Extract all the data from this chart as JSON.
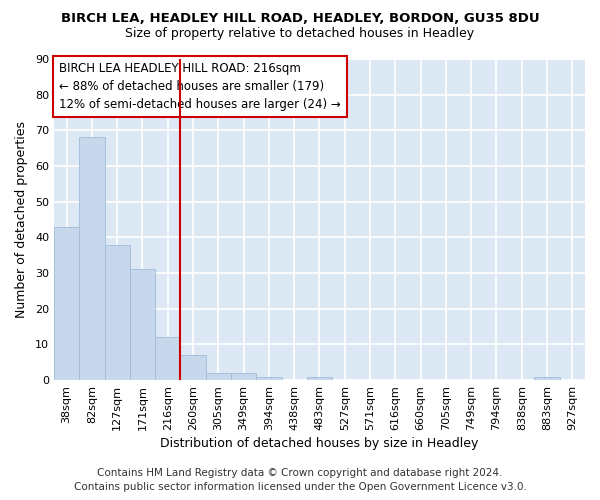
{
  "title_line1": "BIRCH LEA, HEADLEY HILL ROAD, HEADLEY, BORDON, GU35 8DU",
  "title_line2": "Size of property relative to detached houses in Headley",
  "xlabel": "Distribution of detached houses by size in Headley",
  "ylabel": "Number of detached properties",
  "categories": [
    "38sqm",
    "82sqm",
    "127sqm",
    "171sqm",
    "216sqm",
    "260sqm",
    "305sqm",
    "349sqm",
    "394sqm",
    "438sqm",
    "483sqm",
    "527sqm",
    "571sqm",
    "616sqm",
    "660sqm",
    "705sqm",
    "749sqm",
    "794sqm",
    "838sqm",
    "883sqm",
    "927sqm"
  ],
  "values": [
    43,
    68,
    38,
    31,
    12,
    7,
    2,
    2,
    1,
    0,
    1,
    0,
    0,
    0,
    0,
    0,
    0,
    0,
    0,
    1,
    0
  ],
  "bar_color": "#c8d8ec",
  "bar_edge_color": "#a0bcd8",
  "vline_index": 4,
  "vline_color": "#cc0000",
  "ylim": [
    0,
    90
  ],
  "yticks": [
    0,
    10,
    20,
    30,
    40,
    50,
    60,
    70,
    80,
    90
  ],
  "annotation_text_line1": "BIRCH LEA HEADLEY HILL ROAD: 216sqm",
  "annotation_text_line2": "← 88% of detached houses are smaller (179)",
  "annotation_text_line3": "12% of semi-detached houses are larger (24) →",
  "footer_line1": "Contains HM Land Registry data © Crown copyright and database right 2024.",
  "footer_line2": "Contains public sector information licensed under the Open Government Licence v3.0.",
  "fig_bg_color": "#ffffff",
  "plot_bg_color": "#dde8f5",
  "grid_color": "#ffffff",
  "title_fontsize": 9.5,
  "subtitle_fontsize": 9,
  "axis_label_fontsize": 9,
  "tick_fontsize": 8,
  "annotation_fontsize": 8.5,
  "footer_fontsize": 7.5
}
